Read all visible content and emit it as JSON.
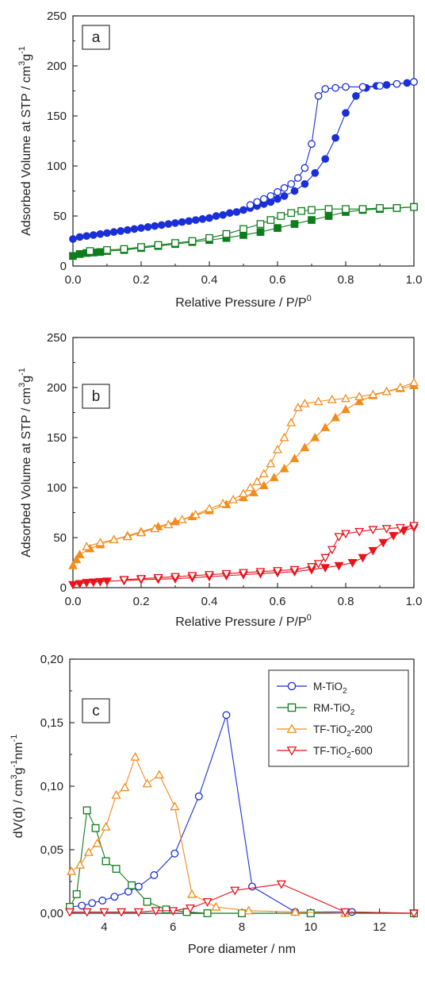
{
  "chart_data": [
    {
      "type": "line",
      "panel_label": "a",
      "xlabel": "Relative Pressure / P/P",
      "xlabel_sup": "0",
      "ylabel_main": "Adsorbed Volume at STP / cm",
      "ylabel_sup1": "3",
      "ylabel_mid": "g",
      "ylabel_sup2": "-1",
      "xlim": [
        0,
        1
      ],
      "ylim": [
        0,
        250
      ],
      "xticks": [
        "0.0",
        "0.2",
        "0.4",
        "0.6",
        "0.8",
        "1.0"
      ],
      "yticks": [
        "0",
        "50",
        "100",
        "150",
        "200",
        "250"
      ],
      "series": [
        {
          "color": "#1a2fd6",
          "marker": "circle",
          "fill": "filled",
          "branch": "adsorption",
          "x": [
            0.0,
            0.02,
            0.04,
            0.06,
            0.08,
            0.1,
            0.12,
            0.14,
            0.16,
            0.18,
            0.2,
            0.22,
            0.24,
            0.26,
            0.28,
            0.3,
            0.32,
            0.34,
            0.36,
            0.38,
            0.4,
            0.42,
            0.44,
            0.46,
            0.48,
            0.5,
            0.52,
            0.54,
            0.56,
            0.58,
            0.6,
            0.62,
            0.65,
            0.68,
            0.71,
            0.74,
            0.77,
            0.8,
            0.83,
            0.86,
            0.89,
            0.92,
            0.95,
            0.98,
            1.0
          ],
          "y": [
            27,
            29,
            30,
            31,
            32,
            33,
            34,
            35,
            36,
            37,
            38,
            39,
            40,
            41,
            42,
            43,
            44,
            45,
            46,
            47,
            48,
            50,
            51,
            53,
            54,
            56,
            58,
            60,
            62,
            64,
            67,
            70,
            75,
            82,
            93,
            107,
            128,
            153,
            170,
            178,
            180,
            181,
            182,
            183,
            184
          ]
        },
        {
          "color": "#1a2fd6",
          "marker": "circle",
          "fill": "open",
          "branch": "desorption",
          "x": [
            1.0,
            0.95,
            0.9,
            0.85,
            0.8,
            0.77,
            0.74,
            0.72,
            0.7,
            0.68,
            0.66,
            0.64,
            0.62,
            0.6,
            0.58,
            0.56,
            0.54,
            0.52
          ],
          "y": [
            184,
            182,
            180,
            179,
            179,
            178,
            177,
            170,
            122,
            98,
            88,
            82,
            78,
            74,
            70,
            67,
            64,
            61
          ]
        },
        {
          "color": "#0e7d1c",
          "marker": "square",
          "fill": "filled",
          "branch": "adsorption",
          "x": [
            0.0,
            0.02,
            0.04,
            0.06,
            0.08,
            0.1,
            0.15,
            0.2,
            0.25,
            0.3,
            0.35,
            0.4,
            0.45,
            0.5,
            0.55,
            0.6,
            0.65,
            0.7,
            0.75,
            0.8,
            0.85,
            0.9,
            0.95,
            1.0
          ],
          "y": [
            10,
            12,
            13,
            13.5,
            14,
            15,
            16,
            18,
            20,
            22,
            24,
            26,
            28,
            31,
            34,
            38,
            42,
            46,
            50,
            54,
            56,
            57,
            58,
            59
          ]
        },
        {
          "color": "#0e7d1c",
          "marker": "square",
          "fill": "open",
          "branch": "desorption",
          "x": [
            1.0,
            0.95,
            0.9,
            0.85,
            0.8,
            0.75,
            0.7,
            0.67,
            0.64,
            0.61,
            0.58,
            0.55,
            0.5,
            0.45,
            0.4,
            0.35,
            0.3,
            0.25,
            0.2,
            0.15,
            0.1,
            0.05
          ],
          "y": [
            59,
            58,
            58,
            57,
            57,
            57,
            56,
            55,
            53,
            50,
            46,
            42,
            37,
            32,
            28,
            25,
            23,
            21,
            19,
            17,
            16,
            15
          ]
        }
      ]
    },
    {
      "type": "line",
      "panel_label": "b",
      "xlabel": "Relative Pressure / P/P",
      "xlabel_sup": "0",
      "ylabel_main": "Adsorbed Volume at STP / cm",
      "ylabel_sup1": "3",
      "ylabel_mid": "g",
      "ylabel_sup2": "-1",
      "xlim": [
        0,
        1
      ],
      "ylim": [
        0,
        250
      ],
      "xticks": [
        "0.0",
        "0.2",
        "0.4",
        "0.6",
        "0.8",
        "1.0"
      ],
      "yticks": [
        "0",
        "50",
        "100",
        "150",
        "200",
        "250"
      ],
      "series": [
        {
          "color": "#f28c1c",
          "marker": "triangle-up",
          "fill": "filled",
          "branch": "adsorption",
          "x": [
            0.0,
            0.01,
            0.02,
            0.05,
            0.08,
            0.12,
            0.16,
            0.2,
            0.25,
            0.3,
            0.35,
            0.4,
            0.45,
            0.5,
            0.53,
            0.56,
            0.59,
            0.62,
            0.65,
            0.68,
            0.71,
            0.74,
            0.77,
            0.8,
            0.84,
            0.88,
            0.92,
            0.96,
            1.0
          ],
          "y": [
            22,
            28,
            33,
            39,
            43,
            48,
            52,
            56,
            61,
            66,
            71,
            77,
            83,
            90,
            95,
            102,
            110,
            119,
            129,
            140,
            150,
            160,
            170,
            178,
            186,
            192,
            196,
            199,
            202
          ]
        },
        {
          "color": "#f28c1c",
          "marker": "triangle-up",
          "fill": "open",
          "branch": "desorption",
          "x": [
            1.0,
            0.96,
            0.92,
            0.88,
            0.84,
            0.8,
            0.76,
            0.72,
            0.68,
            0.66,
            0.64,
            0.62,
            0.6,
            0.58,
            0.56,
            0.54,
            0.52,
            0.5,
            0.47,
            0.44,
            0.4,
            0.36,
            0.32,
            0.28,
            0.24,
            0.2,
            0.16,
            0.12,
            0.08,
            0.04
          ],
          "y": [
            205,
            200,
            196,
            193,
            191,
            189,
            188,
            186,
            184,
            180,
            165,
            150,
            138,
            124,
            114,
            106,
            100,
            94,
            88,
            84,
            79,
            73,
            68,
            63,
            59,
            55,
            51,
            48,
            45,
            41
          ]
        },
        {
          "color": "#e8131b",
          "marker": "triangle-down",
          "fill": "filled",
          "branch": "adsorption",
          "x": [
            0.0,
            0.02,
            0.04,
            0.06,
            0.08,
            0.1,
            0.15,
            0.2,
            0.25,
            0.3,
            0.35,
            0.4,
            0.45,
            0.5,
            0.55,
            0.6,
            0.65,
            0.7,
            0.74,
            0.78,
            0.82,
            0.85,
            0.88,
            0.91,
            0.94,
            0.97,
            1.0
          ],
          "y": [
            3,
            4,
            5,
            5.5,
            6,
            6.5,
            7,
            8,
            8.5,
            9,
            10,
            11,
            12,
            13,
            14,
            15,
            16,
            18,
            20,
            22,
            25,
            30,
            37,
            45,
            52,
            57,
            60
          ]
        },
        {
          "color": "#e8131b",
          "marker": "triangle-down",
          "fill": "open",
          "branch": "desorption",
          "x": [
            1.0,
            0.96,
            0.92,
            0.88,
            0.84,
            0.8,
            0.78,
            0.76,
            0.74,
            0.72,
            0.7,
            0.65,
            0.6,
            0.55,
            0.5,
            0.45,
            0.4,
            0.35,
            0.3,
            0.25,
            0.2,
            0.15
          ],
          "y": [
            62,
            60,
            59,
            58,
            56,
            54,
            51,
            38,
            30,
            24,
            21,
            18,
            17,
            16,
            15,
            14,
            13,
            12,
            11,
            10,
            9,
            8
          ]
        }
      ]
    },
    {
      "type": "line",
      "panel_label": "c",
      "xlabel": "Pore diameter / nm",
      "ylabel_main": "dV(d) / cm",
      "ylabel_sup1": "3",
      "ylabel_mid": "g",
      "ylabel_sup2": "-1",
      "ylabel_mid2": "nm",
      "ylabel_sup3": "-1",
      "xlim": [
        3,
        13
      ],
      "ylim": [
        0,
        0.2
      ],
      "xticks": [
        "4",
        "6",
        "8",
        "10",
        "12"
      ],
      "yticks": [
        "0,00",
        "0,05",
        "0,10",
        "0,15",
        "0,20"
      ],
      "legend_position": "top-right",
      "series": [
        {
          "name": "M-TiO",
          "name_sub": "2",
          "color": "#1a2fd6",
          "marker": "circle",
          "x": [
            3.0,
            3.35,
            3.65,
            3.95,
            4.3,
            4.7,
            5.0,
            5.45,
            6.05,
            6.75,
            7.55,
            8.3,
            9.55,
            11.2,
            13.0
          ],
          "y": [
            0.005,
            0.006,
            0.008,
            0.01,
            0.013,
            0.017,
            0.021,
            0.03,
            0.047,
            0.092,
            0.156,
            0.021,
            0.001,
            0.001,
            0.0
          ]
        },
        {
          "name": "RM-TiO",
          "name_sub": "2",
          "color": "#0e7d1c",
          "marker": "square",
          "x": [
            3.0,
            3.2,
            3.5,
            3.75,
            4.05,
            4.35,
            4.8,
            5.25,
            5.8,
            6.4,
            7.0,
            8.0,
            10.0,
            13.0
          ],
          "y": [
            0.005,
            0.015,
            0.081,
            0.067,
            0.041,
            0.035,
            0.022,
            0.009,
            0.003,
            0.001,
            0.0,
            0.0,
            0.0,
            0.0
          ]
        },
        {
          "name": "TF-TiO",
          "name_sub": "2",
          "name_suffix": "-200",
          "color": "#f28c1c",
          "marker": "triangle-up",
          "x": [
            3.05,
            3.3,
            3.55,
            3.8,
            4.05,
            4.35,
            4.6,
            4.9,
            5.25,
            5.6,
            6.05,
            6.55,
            7.25,
            8.2,
            9.55,
            11.0
          ],
          "y": [
            0.033,
            0.038,
            0.048,
            0.055,
            0.068,
            0.093,
            0.099,
            0.123,
            0.102,
            0.109,
            0.084,
            0.015,
            0.005,
            0.002,
            0.001,
            0.0
          ]
        },
        {
          "name": "TF-TiO",
          "name_sub": "2",
          "name_suffix": "-600",
          "color": "#e8131b",
          "marker": "triangle-down",
          "x": [
            3.0,
            3.5,
            4.0,
            4.5,
            5.0,
            5.5,
            6.0,
            6.5,
            7.0,
            7.8,
            9.15,
            11.0,
            13.0
          ],
          "y": [
            0.001,
            0.001,
            0.001,
            0.001,
            0.001,
            0.002,
            0.002,
            0.004,
            0.009,
            0.018,
            0.023,
            0.001,
            0.0
          ]
        }
      ]
    }
  ]
}
